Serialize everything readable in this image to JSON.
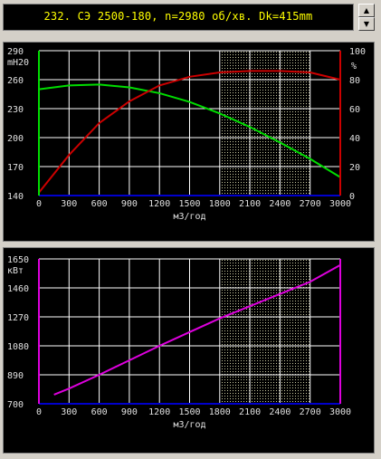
{
  "title": "232. СЭ 2500-180, n=2980 об/хв. Dk=415mm",
  "scroll_up_icon": "up-arrow",
  "scroll_down_icon": "down-arrow",
  "chart_data": [
    {
      "type": "line",
      "xlabel": "м3/год",
      "ylabel": "mH20",
      "ylabel_right": "%",
      "x_ticks": [
        0,
        300,
        600,
        900,
        1200,
        1500,
        1800,
        2100,
        2400,
        2700,
        3000
      ],
      "y_ticks": [
        140,
        170,
        200,
        230,
        260,
        290
      ],
      "y_right_ticks": [
        0,
        20,
        40,
        60,
        80,
        100
      ],
      "xlim": [
        0,
        3000
      ],
      "ylim": [
        140,
        290
      ],
      "y_right_lim": [
        0,
        100
      ],
      "grid": true,
      "highlight_x_range": [
        1800,
        2700
      ],
      "series": [
        {
          "color": "#00dd00",
          "axis": "left",
          "x": [
            0,
            300,
            600,
            900,
            1200,
            1500,
            1800,
            2100,
            2400,
            2700,
            3000
          ],
          "y": [
            250,
            254,
            255,
            252,
            246,
            237,
            225,
            211,
            195,
            178,
            159
          ]
        },
        {
          "color": "#cc0000",
          "axis": "right",
          "x": [
            0,
            300,
            600,
            900,
            1200,
            1500,
            1800,
            2100,
            2400,
            2700,
            3000
          ],
          "y": [
            2,
            28,
            50,
            65,
            76,
            82,
            85,
            86,
            86,
            85,
            80
          ]
        },
        {
          "color": "#0000cc",
          "axis": "left",
          "x": [
            0,
            3000
          ],
          "y": [
            140,
            140
          ]
        }
      ]
    },
    {
      "type": "line",
      "xlabel": "м3/год",
      "ylabel": "кВт",
      "x_ticks": [
        0,
        300,
        600,
        900,
        1200,
        1500,
        1800,
        2100,
        2400,
        2700,
        3000
      ],
      "y_ticks": [
        700,
        890,
        1080,
        1270,
        1460,
        1650
      ],
      "xlim": [
        0,
        3000
      ],
      "ylim": [
        700,
        1650
      ],
      "grid": true,
      "highlight_x_range": [
        1800,
        2700
      ],
      "series": [
        {
          "color": "#dd00dd",
          "axis": "left",
          "x": [
            150,
            300,
            600,
            900,
            1200,
            1500,
            1800,
            2100,
            2400,
            2700,
            3000
          ],
          "y": [
            760,
            800,
            890,
            985,
            1080,
            1170,
            1260,
            1340,
            1420,
            1500,
            1610
          ]
        },
        {
          "color": "#0000cc",
          "axis": "left",
          "x": [
            0,
            3000
          ],
          "y": [
            700,
            700
          ]
        }
      ]
    }
  ]
}
